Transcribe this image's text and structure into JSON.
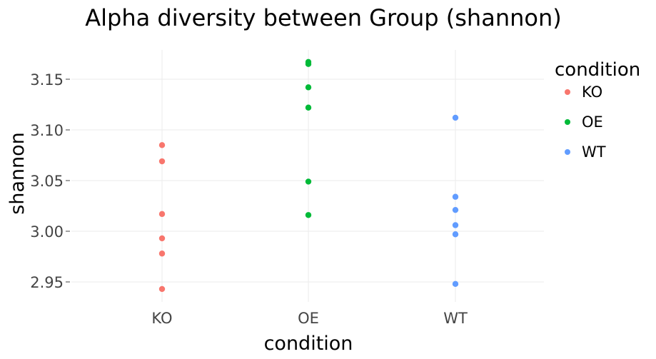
{
  "chart_data": {
    "type": "scatter",
    "title": "Alpha diversity between Group (shannon)",
    "xlabel": "condition",
    "ylabel": "shannon",
    "categories": [
      "KO",
      "OE",
      "WT"
    ],
    "ylim": [
      2.928,
      3.18
    ],
    "yticks": [
      2.95,
      3.0,
      3.05,
      3.1,
      3.15
    ],
    "ytick_labels": [
      "2.95",
      "3.00",
      "3.05",
      "3.10",
      "3.15"
    ],
    "grid": true,
    "legend": {
      "title": "condition",
      "placement": "right"
    },
    "series": [
      {
        "name": "KO",
        "color": "#F8766D",
        "values": [
          3.085,
          3.069,
          3.017,
          2.993,
          2.978,
          2.943
        ]
      },
      {
        "name": "OE",
        "color": "#00BA38",
        "values": [
          3.167,
          3.165,
          3.142,
          3.122,
          3.049,
          3.016
        ]
      },
      {
        "name": "WT",
        "color": "#619CFF",
        "values": [
          3.112,
          3.034,
          3.021,
          3.006,
          2.997,
          2.948
        ]
      }
    ]
  }
}
